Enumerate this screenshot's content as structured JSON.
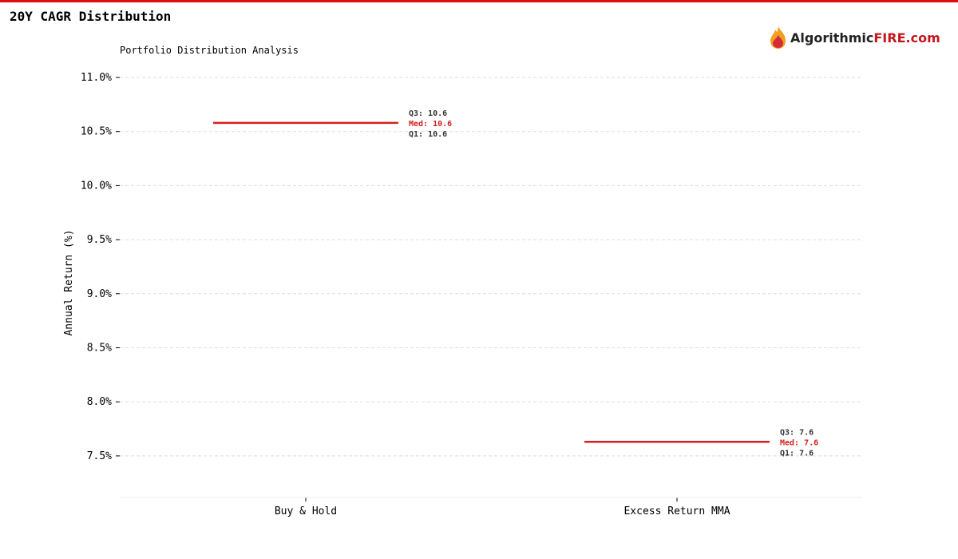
{
  "header": {
    "title": "20Y CAGR Distribution",
    "logo_text_dark": "Algorithmic",
    "logo_text_brand": "FIRE.com"
  },
  "colors": {
    "accent": "#e01010",
    "median": "#d42020"
  },
  "chart_data": {
    "type": "box",
    "title": "Portfolio Distribution Analysis",
    "xlabel": "",
    "ylabel": "Annual Return (%)",
    "ylim": [
      7.12,
      11.12
    ],
    "yticks": [
      7.5,
      8.0,
      8.5,
      9.0,
      9.5,
      10.0,
      10.5,
      11.0
    ],
    "ytick_labels": [
      "7.5%",
      "8.0%",
      "8.5%",
      "9.0%",
      "9.5%",
      "10.0%",
      "10.5%",
      "11.0%"
    ],
    "grid": true,
    "categories": [
      "Buy & Hold",
      "Excess Return MMA"
    ],
    "series": [
      {
        "category": "Buy & Hold",
        "q1": 10.58,
        "median": 10.58,
        "q3": 10.58,
        "labels": {
          "q1": "Q1: 10.6",
          "q3": "Q3: 10.6",
          "median": "Med: 10.6"
        }
      },
      {
        "category": "Excess Return MMA",
        "q1": 7.63,
        "median": 7.63,
        "q3": 7.63,
        "labels": {
          "q1": "Q1: 7.6",
          "q3": "Q3: 7.6",
          "median": "Med: 7.6"
        }
      }
    ]
  }
}
